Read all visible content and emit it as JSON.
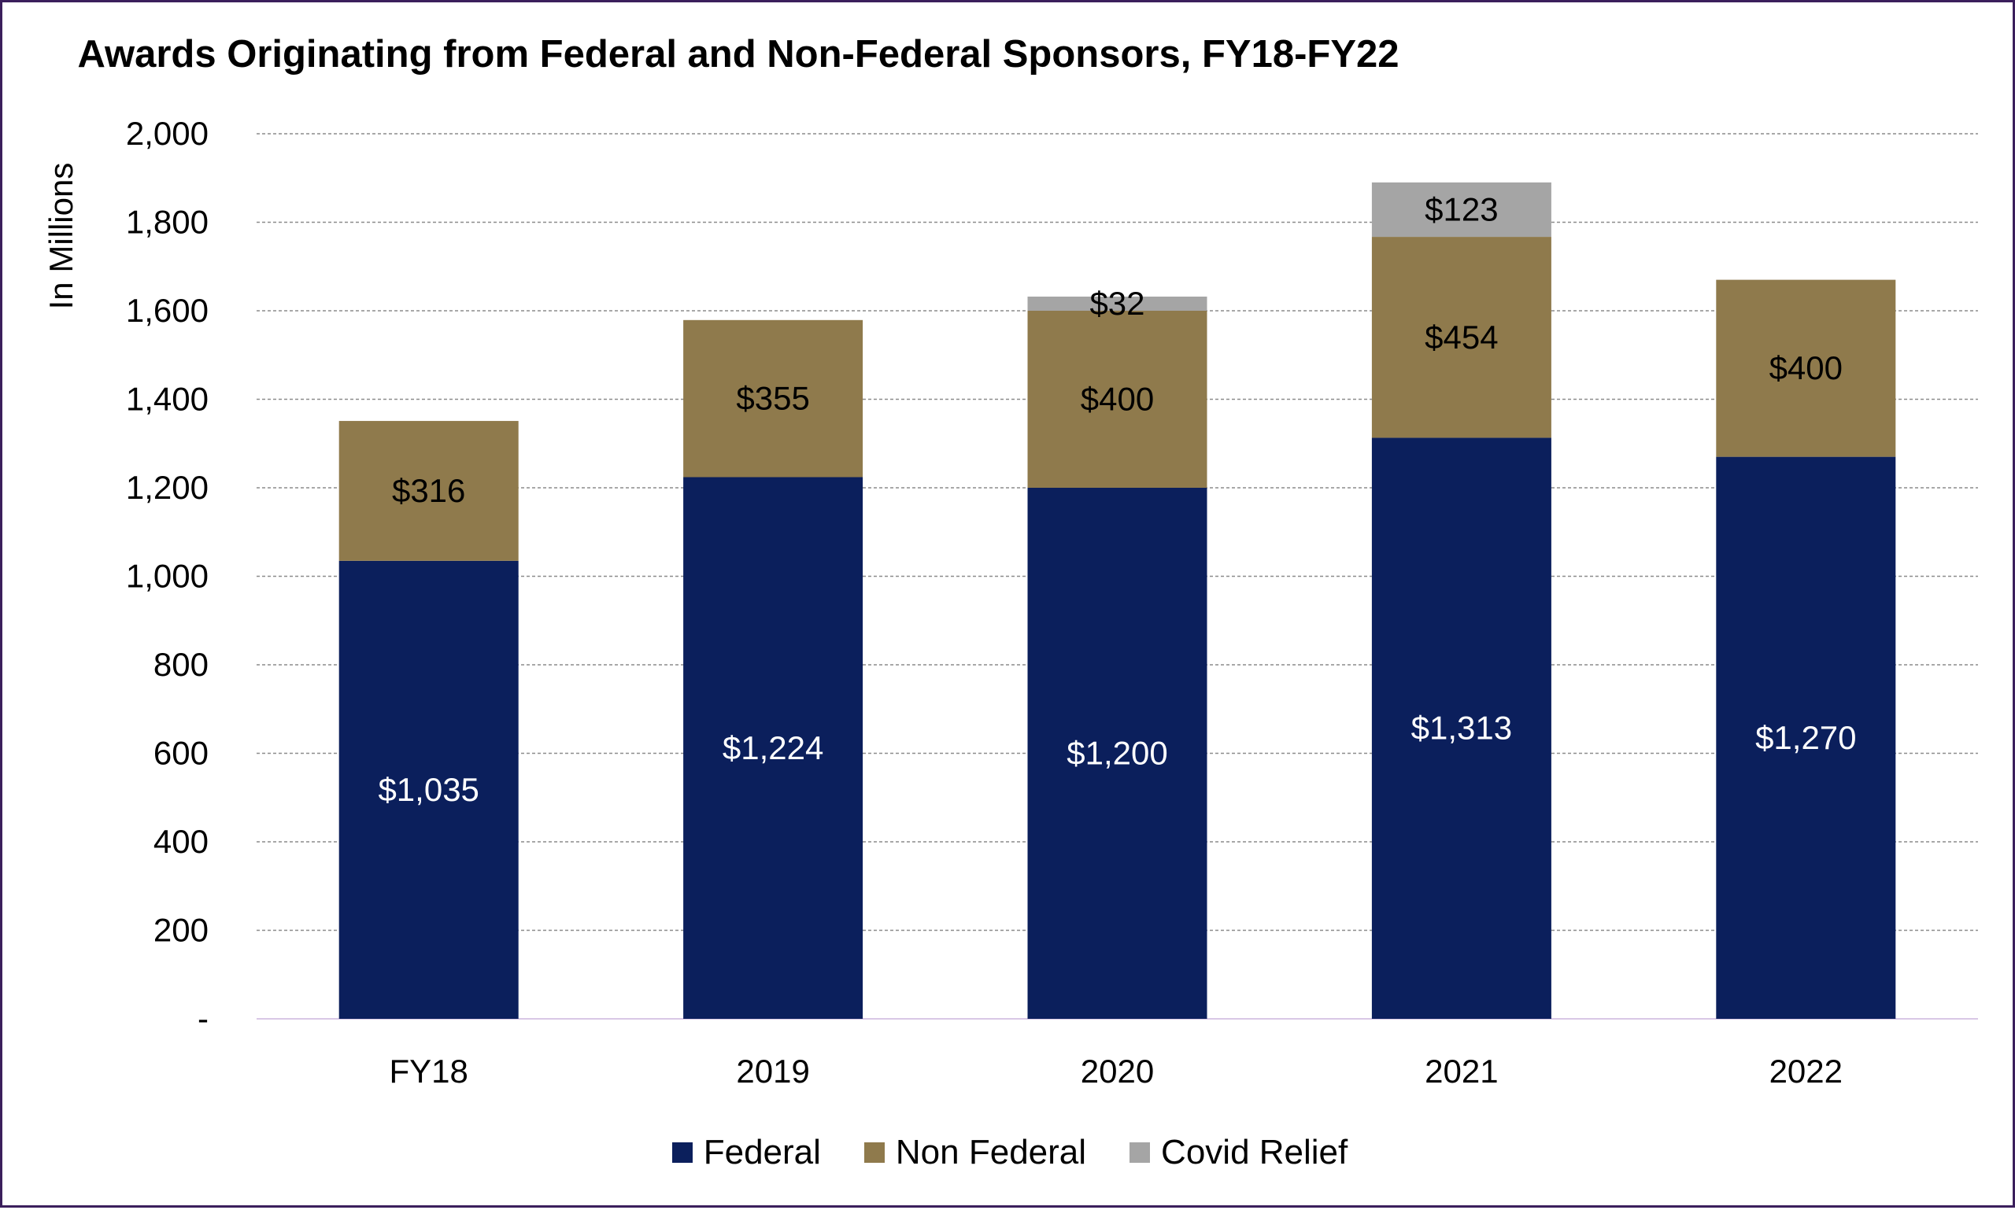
{
  "chart_data": {
    "type": "bar",
    "stacked": true,
    "title": "Awards Originating from Federal and Non-Federal Sponsors, FY18-FY22",
    "ylabel": "In Millions",
    "xlabel": "",
    "ylim": [
      0,
      2000
    ],
    "yticks": [
      0,
      200,
      400,
      600,
      800,
      1000,
      1200,
      1400,
      1600,
      1800,
      2000
    ],
    "ytick_labels": [
      "-",
      "200",
      "400",
      "600",
      "800",
      "1,000",
      "1,200",
      "1,400",
      "1,600",
      "1,800",
      "2,000"
    ],
    "grid": true,
    "legend_position": "bottom",
    "categories": [
      "FY18",
      "2019",
      "2020",
      "2021",
      "2022"
    ],
    "series": [
      {
        "name": "Federal",
        "color": "#0b1f5c",
        "label_color": "#ffffff",
        "values": [
          1035,
          1224,
          1200,
          1313,
          1270
        ],
        "labels": [
          "$1,035",
          "$1,224",
          "$1,200",
          "$1,313",
          "$1,270"
        ]
      },
      {
        "name": "Non Federal",
        "color": "#8f7a4c",
        "label_color": "#000000",
        "values": [
          316,
          355,
          400,
          454,
          400
        ],
        "labels": [
          "$316",
          "$355",
          "$400",
          "$454",
          "$400"
        ]
      },
      {
        "name": "Covid Relief",
        "color": "#a5a5a5",
        "label_color": "#000000",
        "values": [
          0,
          0,
          32,
          123,
          0
        ],
        "labels": [
          "",
          "",
          "$32",
          "$123",
          ""
        ]
      }
    ]
  }
}
